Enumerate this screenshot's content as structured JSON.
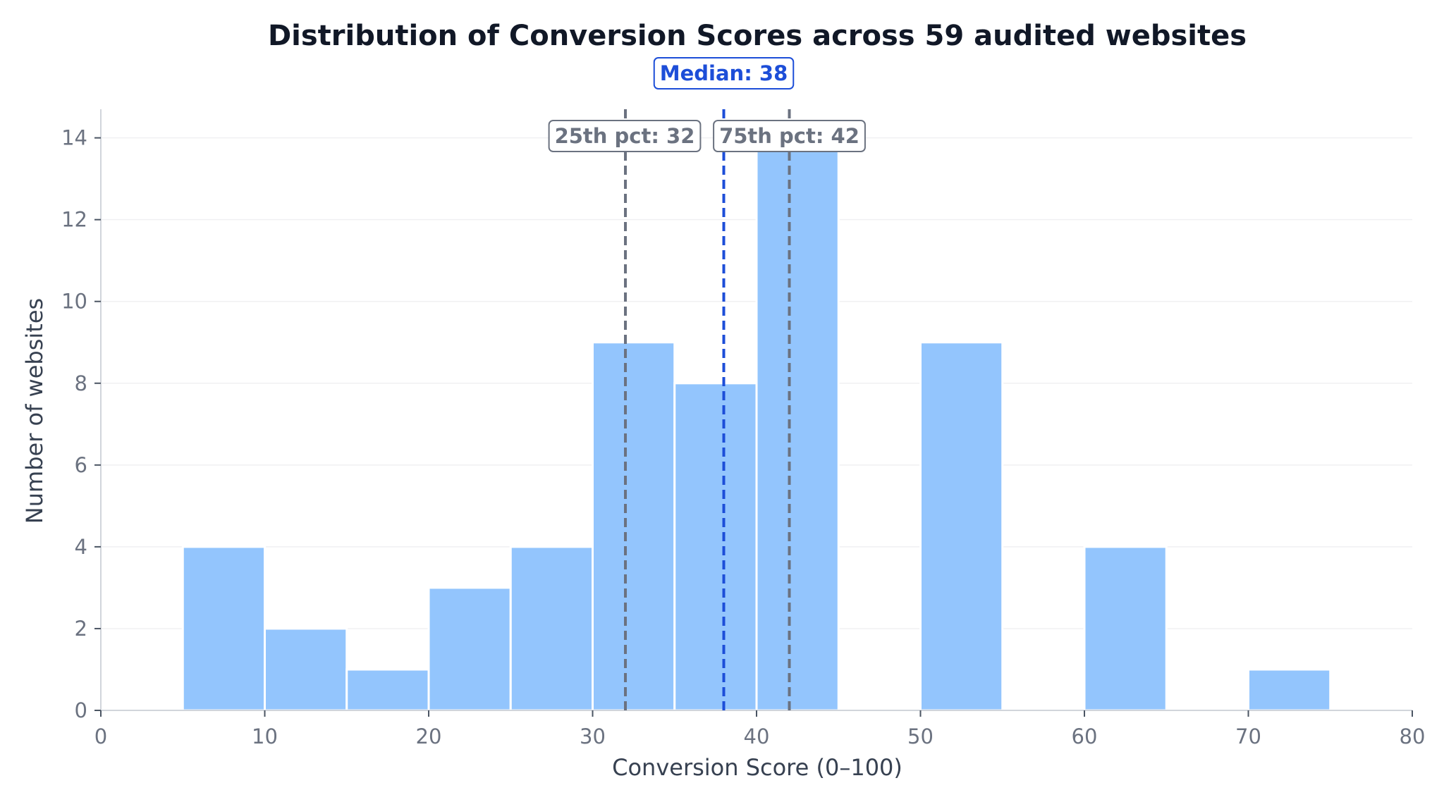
{
  "chart_data": {
    "type": "bar",
    "title": "Distribution of Conversion Scores across 59 audited websites",
    "xlabel": "Conversion Score (0–100)",
    "ylabel": "Number of websites",
    "xlim": [
      0,
      80
    ],
    "ylim": [
      0,
      14.7
    ],
    "x_ticks": [
      0,
      10,
      20,
      30,
      40,
      50,
      60,
      70,
      80
    ],
    "y_ticks": [
      0,
      2,
      4,
      6,
      8,
      10,
      12,
      14
    ],
    "grid": "horizontal",
    "bins": [
      {
        "start": 5,
        "end": 10,
        "count": 4
      },
      {
        "start": 10,
        "end": 15,
        "count": 2
      },
      {
        "start": 15,
        "end": 20,
        "count": 1
      },
      {
        "start": 20,
        "end": 25,
        "count": 3
      },
      {
        "start": 25,
        "end": 30,
        "count": 4
      },
      {
        "start": 30,
        "end": 35,
        "count": 9
      },
      {
        "start": 35,
        "end": 40,
        "count": 8
      },
      {
        "start": 40,
        "end": 45,
        "count": 14
      },
      {
        "start": 45,
        "end": 50,
        "count": 0
      },
      {
        "start": 50,
        "end": 55,
        "count": 9
      },
      {
        "start": 55,
        "end": 60,
        "count": 0
      },
      {
        "start": 60,
        "end": 65,
        "count": 4
      },
      {
        "start": 65,
        "end": 70,
        "count": 0
      },
      {
        "start": 70,
        "end": 75,
        "count": 1
      }
    ],
    "markers": [
      {
        "name": "median",
        "value": 38,
        "label": "Median: 38",
        "color": "#1d4ed8"
      },
      {
        "name": "p25",
        "value": 32,
        "label": "25th pct: 32",
        "color": "#6b7280"
      },
      {
        "name": "p75",
        "value": 42,
        "label": "75th pct: 42",
        "color": "#6b7280"
      }
    ],
    "colors": {
      "bar_fill": "#93c5fd",
      "bar_stroke": "#ffffff",
      "grid": "#f0f0f2",
      "axis": "#d1d5db"
    }
  }
}
